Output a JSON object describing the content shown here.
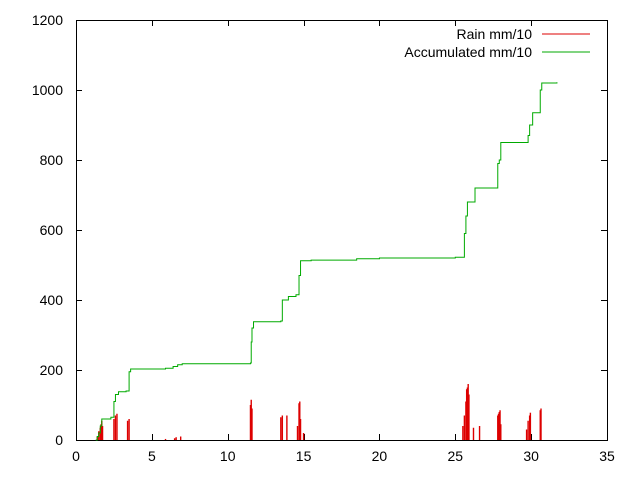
{
  "chart_data": {
    "type": "line",
    "title": "",
    "xlabel": "",
    "ylabel": "",
    "xlim": [
      0,
      35
    ],
    "ylim": [
      0,
      1200
    ],
    "xticks": [
      0,
      5,
      10,
      15,
      20,
      25,
      30,
      35
    ],
    "yticks": [
      0,
      200,
      400,
      600,
      800,
      1000,
      1200
    ],
    "grid": false,
    "legend_position": "top-right",
    "series": [
      {
        "name": "Rain mm/10",
        "style": "impulses",
        "color": "#dd0000",
        "points": [
          [
            1.4,
            10
          ],
          [
            1.5,
            25
          ],
          [
            1.6,
            35
          ],
          [
            1.65,
            45
          ],
          [
            1.7,
            55
          ],
          [
            1.75,
            40
          ],
          [
            2.5,
            60
          ],
          [
            2.6,
            70
          ],
          [
            2.7,
            75
          ],
          [
            3.4,
            55
          ],
          [
            3.5,
            60
          ],
          [
            5.9,
            3
          ],
          [
            6.5,
            5
          ],
          [
            6.6,
            8
          ],
          [
            6.9,
            10
          ],
          [
            11.5,
            100
          ],
          [
            11.55,
            115
          ],
          [
            11.6,
            90
          ],
          [
            13.5,
            65
          ],
          [
            13.6,
            70
          ],
          [
            13.9,
            70
          ],
          [
            14.6,
            40
          ],
          [
            14.7,
            105
          ],
          [
            14.75,
            110
          ],
          [
            14.8,
            60
          ],
          [
            15.0,
            20
          ],
          [
            25.5,
            40
          ],
          [
            25.6,
            70
          ],
          [
            25.7,
            110
          ],
          [
            25.75,
            145
          ],
          [
            25.8,
            150
          ],
          [
            25.85,
            160
          ],
          [
            25.9,
            130
          ],
          [
            26.2,
            35
          ],
          [
            26.6,
            40
          ],
          [
            27.8,
            70
          ],
          [
            27.85,
            75
          ],
          [
            27.9,
            80
          ],
          [
            27.95,
            85
          ],
          [
            28.0,
            45
          ],
          [
            29.7,
            30
          ],
          [
            29.8,
            55
          ],
          [
            29.9,
            70
          ],
          [
            29.95,
            78
          ],
          [
            30.6,
            85
          ],
          [
            30.65,
            90
          ]
        ]
      },
      {
        "name": "Accumulated mm/10",
        "style": "steps",
        "color": "#00aa00",
        "points": [
          [
            1.3,
            0
          ],
          [
            1.4,
            10
          ],
          [
            1.5,
            20
          ],
          [
            1.6,
            40
          ],
          [
            1.7,
            60
          ],
          [
            2.3,
            65
          ],
          [
            2.5,
            110
          ],
          [
            2.6,
            130
          ],
          [
            2.8,
            138
          ],
          [
            3.3,
            140
          ],
          [
            3.5,
            195
          ],
          [
            3.6,
            203
          ],
          [
            5.9,
            205
          ],
          [
            6.4,
            210
          ],
          [
            6.7,
            215
          ],
          [
            7.0,
            218
          ],
          [
            11.5,
            220
          ],
          [
            11.55,
            280
          ],
          [
            11.6,
            320
          ],
          [
            11.7,
            338
          ],
          [
            13.5,
            340
          ],
          [
            13.6,
            400
          ],
          [
            14.0,
            410
          ],
          [
            14.5,
            415
          ],
          [
            14.7,
            470
          ],
          [
            14.8,
            512
          ],
          [
            15.5,
            514
          ],
          [
            18.5,
            518
          ],
          [
            20.0,
            520
          ],
          [
            25.0,
            522
          ],
          [
            25.6,
            590
          ],
          [
            25.7,
            640
          ],
          [
            25.8,
            680
          ],
          [
            26.3,
            720
          ],
          [
            27.1,
            720
          ],
          [
            27.8,
            790
          ],
          [
            27.9,
            800
          ],
          [
            28.0,
            850
          ],
          [
            29.8,
            870
          ],
          [
            29.9,
            900
          ],
          [
            30.1,
            935
          ],
          [
            30.5,
            935
          ],
          [
            30.6,
            1000
          ],
          [
            30.7,
            1020
          ],
          [
            31.7,
            1022
          ]
        ]
      }
    ]
  }
}
